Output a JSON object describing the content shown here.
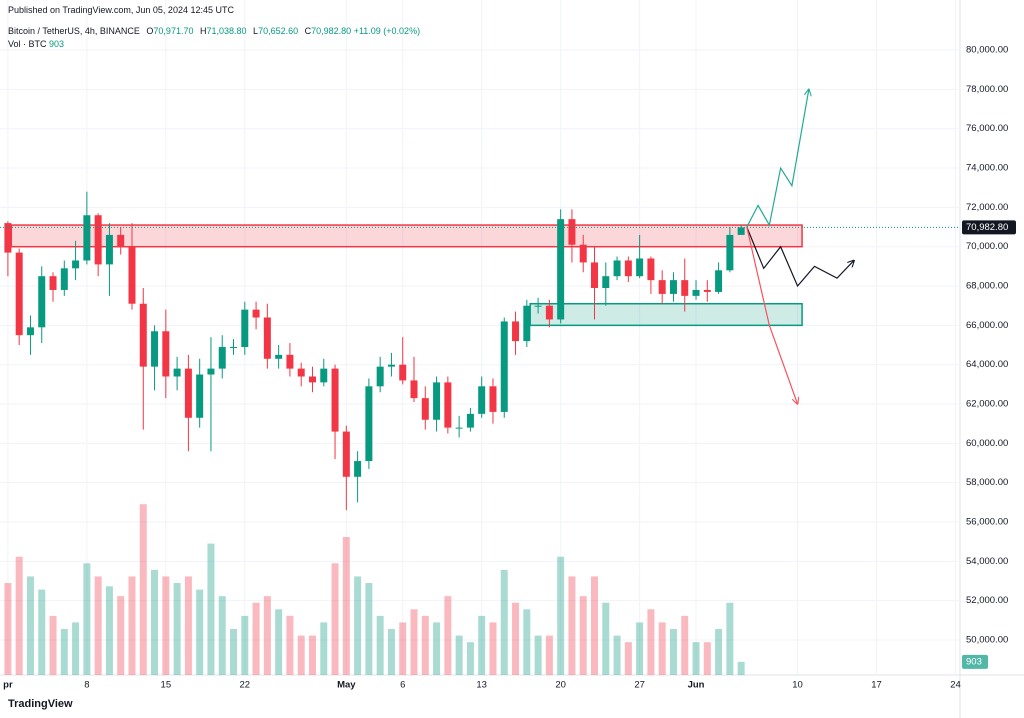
{
  "header": {
    "published": "Published on TradingView.com, Jun 05, 2024 12:45 UTC",
    "symbol": "Bitcoin / TetherUS, 4h, BINANCE",
    "o_label": "O",
    "o": "70,971.70",
    "h_label": "H",
    "h": "71,038.80",
    "l_label": "L",
    "l": "70,652.60",
    "c_label": "C",
    "c": "70,982.80",
    "change": "+11.09 (+0.02%)",
    "vol_label": "Vol · BTC",
    "vol": "903"
  },
  "footer": {
    "brand": "TradingView"
  },
  "chart_data": {
    "type": "candlestick",
    "x": [
      0,
      1,
      2,
      3,
      4,
      5,
      6,
      7,
      8,
      9,
      10,
      11,
      12,
      13,
      14,
      15,
      16,
      17,
      18,
      19,
      20,
      21,
      22,
      23,
      24,
      25,
      26,
      27,
      28,
      29,
      30,
      31,
      32,
      33,
      34,
      35,
      36,
      37,
      38,
      39,
      40,
      41,
      42,
      43,
      44,
      45,
      46,
      47,
      48,
      49,
      50,
      51,
      52,
      53,
      54,
      55,
      56,
      57,
      58,
      59,
      60,
      61,
      62,
      63,
      64,
      65
    ],
    "open": [
      71200,
      69700,
      65500,
      65900,
      68500,
      67800,
      68900,
      69300,
      71600,
      69100,
      70600,
      70000,
      67100,
      63900,
      65700,
      63400,
      63800,
      61300,
      63500,
      63800,
      64900,
      64900,
      66800,
      66400,
      64300,
      64500,
      63800,
      63400,
      63100,
      63800,
      60600,
      58300,
      59100,
      62900,
      63900,
      64000,
      63200,
      62300,
      61200,
      63100,
      60800,
      60800,
      61500,
      62900,
      61600,
      66200,
      65200,
      67000,
      67000,
      66300,
      71400,
      70100,
      69200,
      67900,
      68500,
      69300,
      68500,
      69400,
      68300,
      67600,
      68300,
      67500,
      67800,
      67700,
      68800,
      70600
    ],
    "high": [
      71300,
      69900,
      66500,
      69000,
      68700,
      69300,
      70300,
      72800,
      71700,
      71200,
      71000,
      71200,
      67900,
      66000,
      66800,
      64400,
      64500,
      64300,
      65400,
      65500,
      65300,
      67200,
      67200,
      67100,
      65000,
      65100,
      64100,
      63900,
      64300,
      64000,
      60900,
      59600,
      63300,
      64400,
      64600,
      65400,
      64400,
      62900,
      63400,
      63400,
      61400,
      61800,
      63400,
      63300,
      66400,
      66700,
      67300,
      67400,
      67300,
      71900,
      71900,
      70600,
      70000,
      69200,
      69500,
      69500,
      70600,
      69500,
      68800,
      68700,
      69400,
      68300,
      68300,
      69200,
      71000,
      71100
    ],
    "low": [
      68500,
      65000,
      64500,
      65100,
      67200,
      67500,
      68300,
      69100,
      68500,
      67500,
      69600,
      66800,
      60700,
      62700,
      62300,
      62700,
      59600,
      60800,
      59600,
      63300,
      64500,
      64500,
      65800,
      63800,
      63800,
      63400,
      62900,
      62600,
      62900,
      59200,
      56600,
      57000,
      58700,
      62600,
      63400,
      63000,
      62100,
      60700,
      60600,
      60500,
      60300,
      60600,
      61300,
      61000,
      61300,
      64500,
      64900,
      66600,
      65900,
      66100,
      69200,
      68700,
      66300,
      67000,
      68300,
      68200,
      68400,
      67600,
      67100,
      67200,
      66700,
      67300,
      67200,
      67600,
      68700,
      70600
    ],
    "close": [
      69700,
      65500,
      65900,
      68500,
      67800,
      68900,
      69300,
      71600,
      69100,
      70600,
      70000,
      67100,
      63900,
      65700,
      63400,
      63800,
      61300,
      63500,
      63800,
      64900,
      64900,
      66800,
      66400,
      64300,
      64500,
      63800,
      63400,
      63100,
      63800,
      60600,
      58300,
      59100,
      62900,
      63900,
      64000,
      63200,
      62300,
      61200,
      63100,
      60800,
      60800,
      61500,
      62900,
      61600,
      66200,
      65200,
      67000,
      67000,
      66300,
      71400,
      70100,
      69200,
      67900,
      68500,
      69300,
      68500,
      69400,
      68300,
      67600,
      68300,
      67500,
      67800,
      67700,
      68800,
      70600,
      70983
    ],
    "volume": [
      28000,
      36000,
      30000,
      26000,
      18000,
      14000,
      16000,
      34000,
      30000,
      27000,
      24000,
      30000,
      52000,
      32000,
      30000,
      28000,
      30000,
      26000,
      40000,
      24000,
      14000,
      18000,
      22000,
      24000,
      20000,
      18000,
      12000,
      12000,
      16000,
      34000,
      42000,
      30000,
      28000,
      18000,
      14000,
      16000,
      20000,
      18000,
      16000,
      24000,
      12000,
      10000,
      18000,
      16000,
      32000,
      22000,
      20000,
      12000,
      12000,
      36000,
      30000,
      24000,
      30000,
      22000,
      12000,
      10000,
      16000,
      20000,
      16000,
      14000,
      18000,
      10000,
      10000,
      14000,
      22000,
      4000
    ],
    "volume_lim": [
      0,
      200000
    ],
    "up_color": "#089981",
    "down_color": "#f23645",
    "xlim": [
      -0.7,
      84.4
    ],
    "xticks": [
      {
        "value": 0,
        "label": "pr"
      },
      {
        "value": 7,
        "label": "8"
      },
      {
        "value": 14,
        "label": "15"
      },
      {
        "value": 21,
        "label": "22"
      },
      {
        "value": 30,
        "label": "May"
      },
      {
        "value": 35,
        "label": "6"
      },
      {
        "value": 42,
        "label": "13"
      },
      {
        "value": 49,
        "label": "20"
      },
      {
        "value": 56,
        "label": "27"
      },
      {
        "value": 61,
        "label": "Jun"
      },
      {
        "value": 70,
        "label": "10"
      },
      {
        "value": 77,
        "label": "17"
      },
      {
        "value": 84,
        "label": "24"
      }
    ],
    "ylim": [
      48220,
      81630
    ],
    "yticks": [
      {
        "value": 50000,
        "label": "50,000.00"
      },
      {
        "value": 52000,
        "label": "52,000.00"
      },
      {
        "value": 54000,
        "label": "54,000.00"
      },
      {
        "value": 56000,
        "label": "56,000.00"
      },
      {
        "value": 58000,
        "label": "58,000.00"
      },
      {
        "value": 60000,
        "label": "60,000.00"
      },
      {
        "value": 62000,
        "label": "62,000.00"
      },
      {
        "value": 64000,
        "label": "64,000.00"
      },
      {
        "value": 66000,
        "label": "66,000.00"
      },
      {
        "value": 68000,
        "label": "68,000.00"
      },
      {
        "value": 70000,
        "label": "70,000.00"
      },
      {
        "value": 72000,
        "label": "72,000.00"
      },
      {
        "value": 74000,
        "label": "74,000.00"
      },
      {
        "value": 76000,
        "label": "76,000.00"
      },
      {
        "value": 78000,
        "label": "78,000.00"
      },
      {
        "value": 80000,
        "label": "80,000.00"
      }
    ],
    "grid": true,
    "last_price": {
      "value": 70982.8,
      "label": "70,982.80"
    },
    "zones": [
      {
        "x": [
          0.3,
          70.4
        ],
        "y": [
          70000,
          71100
        ],
        "color": "#f23645"
      },
      {
        "x": [
          46.3,
          70.4
        ],
        "y": [
          66000,
          67100
        ],
        "color": "#089981"
      }
    ],
    "drawings": [
      {
        "color": "#22ab94",
        "x": [
          65.5,
          66.5,
          67.5,
          68.5,
          69.5,
          71
        ],
        "y": [
          71000,
          72100,
          71100,
          74000,
          73100,
          78000
        ]
      },
      {
        "color": "#131722",
        "x": [
          65.5,
          67,
          68.5,
          70,
          71.5,
          73.5,
          75
        ],
        "y": [
          71000,
          68900,
          70000,
          68000,
          69000,
          68400,
          69300
        ]
      },
      {
        "color": "#f7525f",
        "x": [
          65.5,
          67.5,
          70
        ],
        "y": [
          71000,
          66000,
          62000
        ]
      }
    ]
  }
}
